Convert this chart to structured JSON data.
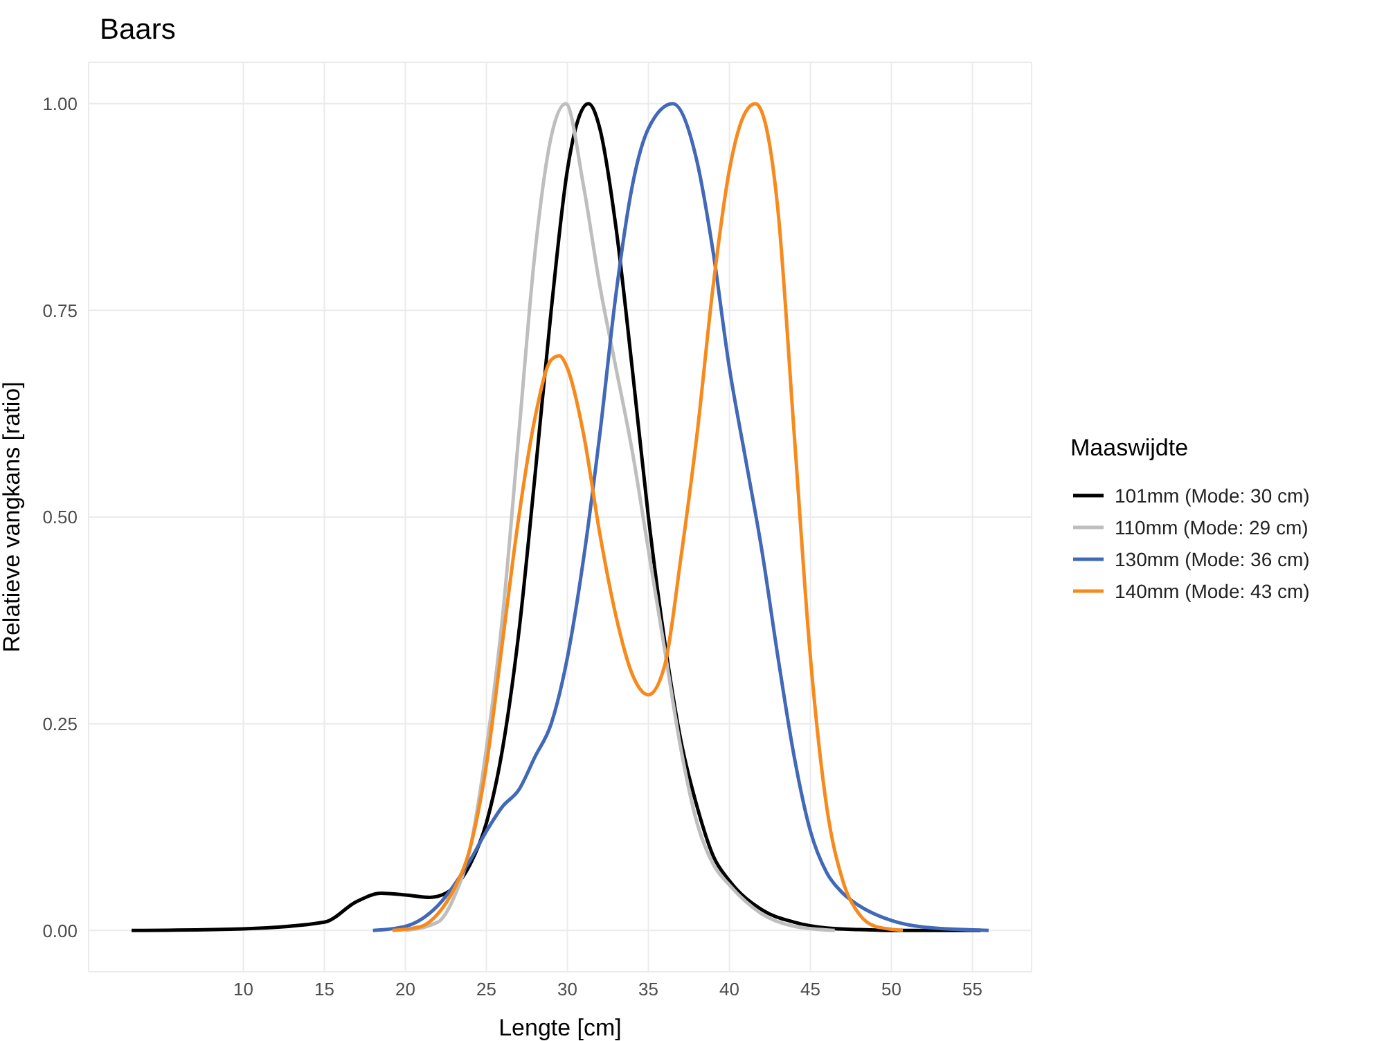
{
  "chart_data": {
    "type": "line",
    "title": "Baars",
    "xlabel": "Lengte [cm]",
    "ylabel": "Relatieve vangkans [ratio]",
    "legend_title": "Maaswijdte",
    "xlim": [
      0.45,
      58.65
    ],
    "xticks": [
      10,
      15,
      20,
      25,
      30,
      35,
      40,
      45,
      50,
      55
    ],
    "ylim": [
      -0.05,
      1.05
    ],
    "yticks": [
      {
        "value": 0,
        "label": "0.00"
      },
      {
        "value": 0.25,
        "label": "0.25"
      },
      {
        "value": 0.5,
        "label": "0.50"
      },
      {
        "value": 0.75,
        "label": "0.75"
      },
      {
        "value": 1,
        "label": "1.00"
      }
    ],
    "grid": true,
    "legend": "right",
    "series": [
      {
        "name": "101mm (Mode: 30 cm)",
        "color": "#000000",
        "x": [
          3.1,
          10,
          15,
          17,
          18.5,
          20,
          21.5,
          22.5,
          24,
          25,
          26,
          27,
          28,
          29,
          30,
          31.3,
          32,
          33,
          34,
          35,
          36,
          37,
          38,
          39,
          40,
          42,
          44,
          46,
          48,
          50,
          55.5
        ],
        "values": [
          0,
          0.002,
          0.01,
          0.035,
          0.045,
          0.043,
          0.04,
          0.045,
          0.08,
          0.13,
          0.22,
          0.36,
          0.55,
          0.75,
          0.92,
          1.0,
          0.97,
          0.85,
          0.68,
          0.5,
          0.35,
          0.23,
          0.15,
          0.09,
          0.06,
          0.025,
          0.01,
          0.003,
          0.001,
          0,
          0
        ]
      },
      {
        "name": "110mm (Mode: 29 cm)",
        "color": "#bebebe",
        "x": [
          20,
          22,
          23,
          24,
          25,
          26,
          27,
          28,
          29,
          29.9,
          31,
          32,
          33,
          34,
          35,
          36,
          37,
          38,
          39,
          40,
          41,
          42,
          44,
          46.5
        ],
        "values": [
          0,
          0.01,
          0.04,
          0.1,
          0.22,
          0.38,
          0.6,
          0.82,
          0.96,
          1.0,
          0.9,
          0.78,
          0.68,
          0.58,
          0.46,
          0.34,
          0.22,
          0.13,
          0.08,
          0.055,
          0.035,
          0.02,
          0.005,
          0
        ]
      },
      {
        "name": "130mm (Mode: 36 cm)",
        "color": "#4169b8",
        "x": [
          18,
          20,
          22,
          24,
          25,
          26,
          27,
          28,
          29,
          30,
          31,
          32,
          33,
          34,
          35,
          36.5,
          38,
          39,
          40,
          41,
          42,
          43,
          44,
          45,
          46,
          47,
          48,
          50,
          52,
          56
        ],
        "values": [
          0,
          0.005,
          0.03,
          0.085,
          0.12,
          0.15,
          0.17,
          0.21,
          0.25,
          0.33,
          0.45,
          0.6,
          0.77,
          0.9,
          0.97,
          1.0,
          0.93,
          0.82,
          0.68,
          0.57,
          0.46,
          0.33,
          0.21,
          0.12,
          0.07,
          0.045,
          0.03,
          0.012,
          0.004,
          0
        ]
      },
      {
        "name": "140mm (Mode: 43 cm)",
        "color": "#f78a1d",
        "x": [
          19.2,
          21,
          22,
          23,
          24,
          25,
          26,
          27,
          28,
          29,
          29.5,
          30,
          31,
          32,
          33,
          34,
          35,
          36,
          37,
          38,
          39,
          40,
          41,
          41.6,
          42,
          43,
          44,
          45,
          46,
          47,
          48,
          49,
          50.7
        ],
        "values": [
          0,
          0.005,
          0.02,
          0.05,
          0.1,
          0.2,
          0.35,
          0.5,
          0.62,
          0.69,
          0.695,
          0.68,
          0.6,
          0.48,
          0.38,
          0.31,
          0.285,
          0.32,
          0.45,
          0.6,
          0.78,
          0.92,
          0.99,
          1.0,
          0.99,
          0.87,
          0.6,
          0.33,
          0.15,
          0.06,
          0.02,
          0.005,
          0
        ]
      }
    ]
  }
}
